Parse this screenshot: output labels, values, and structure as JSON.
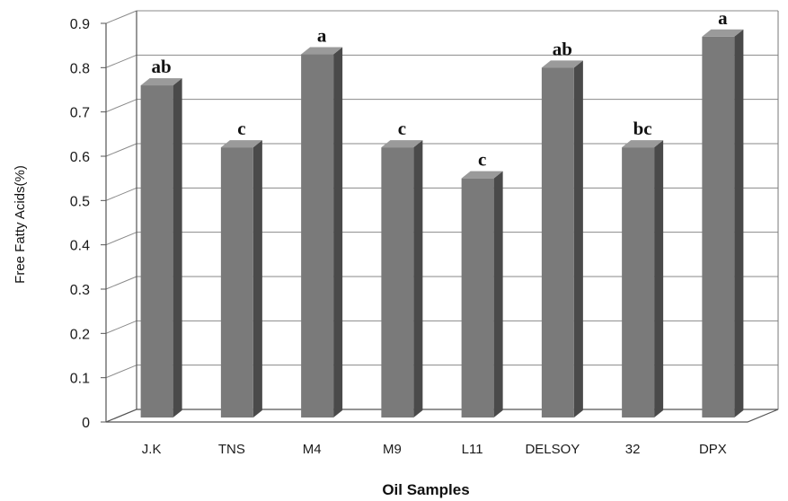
{
  "chart_data": {
    "type": "bar",
    "categories": [
      "J.K",
      "TNS",
      "M4",
      "M9",
      "L11",
      "DELSOY",
      "32",
      "DPX"
    ],
    "values": [
      0.76,
      0.62,
      0.83,
      0.62,
      0.55,
      0.8,
      0.62,
      0.87
    ],
    "annotations": [
      "ab",
      "c",
      "a",
      "c",
      "c",
      "ab",
      "bc",
      "a"
    ],
    "xlabel": "Oil Samples",
    "ylabel": "Free Fatty Acids(%)",
    "ylim": [
      0,
      0.9
    ],
    "yticks": [
      "0",
      "0.1",
      "0.2",
      "0.3",
      "0.4",
      "0.5",
      "0.6",
      "0.7",
      "0.8",
      "0.9"
    ],
    "grid": true,
    "style": "3d-column",
    "colors": {
      "bar_front": "#7a7a7a",
      "bar_side": "#4a4a4a",
      "bar_top": "#9a9a9a",
      "gridline": "#8a8a8a"
    }
  }
}
